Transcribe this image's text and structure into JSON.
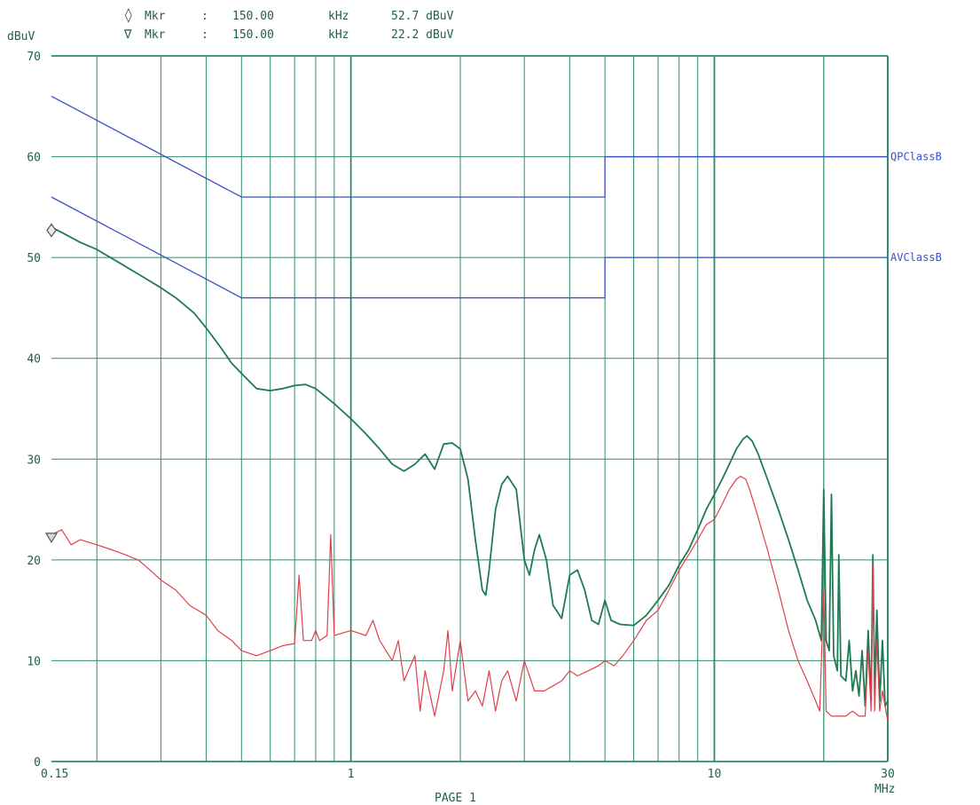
{
  "header": {
    "markers": [
      {
        "symbol": "◊",
        "label": "Mkr",
        "sep": ":",
        "freq": "150.00",
        "freq_unit": "kHz",
        "level": "52.7 dBuV"
      },
      {
        "symbol": "∇",
        "label": "Mkr",
        "sep": ":",
        "freq": "150.00",
        "freq_unit": "kHz",
        "level": "22.2 dBuV"
      }
    ]
  },
  "footer": {
    "page_label": "PAGE 1"
  },
  "colors": {
    "grid": "#2e8b68",
    "limit": "#3a4fc4",
    "trace_green": "#1f7a55",
    "trace_red": "#e0404a",
    "text": "#1f5f4a",
    "limit_label": "#3a4fc4"
  },
  "chart_data": {
    "type": "line",
    "xscale": "log",
    "xlim": [
      0.15,
      30
    ],
    "ylim": [
      0,
      70
    ],
    "ylabel": "dBuV",
    "xunit": "MHz",
    "y_ticks": [
      0,
      10,
      20,
      30,
      40,
      50,
      60,
      70
    ],
    "x_tick_labels": [
      {
        "value": 0.15,
        "label": "0.15"
      },
      {
        "value": 1,
        "label": "1"
      },
      {
        "value": 10,
        "label": "10"
      },
      {
        "value": 30,
        "label": "30"
      }
    ],
    "limit_lines": [
      {
        "name": "QPClassB",
        "points": [
          [
            0.15,
            66
          ],
          [
            0.5,
            56
          ],
          [
            5,
            56
          ],
          [
            5,
            60
          ],
          [
            30,
            60
          ]
        ]
      },
      {
        "name": "AVClassB",
        "points": [
          [
            0.15,
            56
          ],
          [
            0.5,
            46
          ],
          [
            5,
            46
          ],
          [
            5,
            50
          ],
          [
            30,
            50
          ]
        ]
      }
    ],
    "series": [
      {
        "color": "green",
        "points": [
          [
            0.15,
            53
          ],
          [
            0.16,
            52.5
          ],
          [
            0.18,
            51.5
          ],
          [
            0.2,
            50.8
          ],
          [
            0.23,
            49.5
          ],
          [
            0.27,
            48
          ],
          [
            0.3,
            47
          ],
          [
            0.33,
            46
          ],
          [
            0.37,
            44.5
          ],
          [
            0.4,
            43
          ],
          [
            0.44,
            41
          ],
          [
            0.47,
            39.5
          ],
          [
            0.5,
            38.5
          ],
          [
            0.55,
            37
          ],
          [
            0.6,
            36.8
          ],
          [
            0.65,
            37
          ],
          [
            0.7,
            37.3
          ],
          [
            0.75,
            37.4
          ],
          [
            0.8,
            37
          ],
          [
            0.9,
            35.5
          ],
          [
            1.0,
            34
          ],
          [
            1.1,
            32.5
          ],
          [
            1.2,
            31
          ],
          [
            1.3,
            29.5
          ],
          [
            1.4,
            28.8
          ],
          [
            1.5,
            29.5
          ],
          [
            1.6,
            30.5
          ],
          [
            1.7,
            29
          ],
          [
            1.8,
            31.5
          ],
          [
            1.9,
            31.6
          ],
          [
            2.0,
            31
          ],
          [
            2.1,
            28
          ],
          [
            2.2,
            22
          ],
          [
            2.3,
            17
          ],
          [
            2.35,
            16.5
          ],
          [
            2.4,
            19
          ],
          [
            2.5,
            25
          ],
          [
            2.6,
            27.5
          ],
          [
            2.7,
            28.3
          ],
          [
            2.85,
            27
          ],
          [
            3.0,
            20
          ],
          [
            3.1,
            18.5
          ],
          [
            3.2,
            21
          ],
          [
            3.3,
            22.5
          ],
          [
            3.45,
            20
          ],
          [
            3.6,
            15.5
          ],
          [
            3.8,
            14.2
          ],
          [
            4.0,
            18.5
          ],
          [
            4.2,
            19
          ],
          [
            4.4,
            17
          ],
          [
            4.6,
            14
          ],
          [
            4.8,
            13.6
          ],
          [
            5.0,
            16
          ],
          [
            5.2,
            14
          ],
          [
            5.5,
            13.6
          ],
          [
            6.0,
            13.5
          ],
          [
            6.5,
            14.5
          ],
          [
            7.0,
            16
          ],
          [
            7.5,
            17.5
          ],
          [
            8.0,
            19.5
          ],
          [
            8.5,
            21
          ],
          [
            9.0,
            23
          ],
          [
            9.5,
            25
          ],
          [
            10.0,
            26.5
          ],
          [
            10.5,
            28
          ],
          [
            11.0,
            29.5
          ],
          [
            11.5,
            31
          ],
          [
            12.0,
            32
          ],
          [
            12.3,
            32.3
          ],
          [
            12.7,
            31.8
          ],
          [
            13.2,
            30.5
          ],
          [
            14.0,
            28
          ],
          [
            15.0,
            25
          ],
          [
            16.0,
            22
          ],
          [
            17.0,
            19
          ],
          [
            18.0,
            16
          ],
          [
            19.0,
            14
          ],
          [
            19.7,
            12
          ],
          [
            20.0,
            27
          ],
          [
            20.3,
            12
          ],
          [
            20.7,
            11
          ],
          [
            21.0,
            26.5
          ],
          [
            21.3,
            10.5
          ],
          [
            21.8,
            9
          ],
          [
            22.0,
            20.5
          ],
          [
            22.3,
            8.5
          ],
          [
            23.0,
            8
          ],
          [
            23.5,
            12
          ],
          [
            24.0,
            7
          ],
          [
            24.5,
            9
          ],
          [
            25.0,
            6.5
          ],
          [
            25.5,
            11
          ],
          [
            26.0,
            5.5
          ],
          [
            26.5,
            13
          ],
          [
            27.0,
            6
          ],
          [
            27.3,
            20.5
          ],
          [
            27.6,
            7
          ],
          [
            28.0,
            15
          ],
          [
            28.5,
            6
          ],
          [
            29.0,
            12
          ],
          [
            29.5,
            5.5
          ],
          [
            30.0,
            6
          ]
        ]
      },
      {
        "color": "red",
        "points": [
          [
            0.15,
            22.5
          ],
          [
            0.16,
            23
          ],
          [
            0.17,
            21.5
          ],
          [
            0.18,
            22
          ],
          [
            0.2,
            21.5
          ],
          [
            0.22,
            21
          ],
          [
            0.24,
            20.5
          ],
          [
            0.26,
            20
          ],
          [
            0.28,
            19
          ],
          [
            0.3,
            18
          ],
          [
            0.33,
            17
          ],
          [
            0.36,
            15.5
          ],
          [
            0.4,
            14.5
          ],
          [
            0.43,
            13
          ],
          [
            0.47,
            12
          ],
          [
            0.5,
            11
          ],
          [
            0.55,
            10.5
          ],
          [
            0.6,
            11
          ],
          [
            0.65,
            11.5
          ],
          [
            0.7,
            11.7
          ],
          [
            0.72,
            18.5
          ],
          [
            0.74,
            12
          ],
          [
            0.78,
            12
          ],
          [
            0.8,
            13
          ],
          [
            0.82,
            12
          ],
          [
            0.86,
            12.5
          ],
          [
            0.88,
            22.5
          ],
          [
            0.9,
            12.5
          ],
          [
            1.0,
            13
          ],
          [
            1.1,
            12.5
          ],
          [
            1.15,
            14
          ],
          [
            1.2,
            12
          ],
          [
            1.3,
            10
          ],
          [
            1.35,
            12
          ],
          [
            1.4,
            8
          ],
          [
            1.5,
            10.5
          ],
          [
            1.55,
            5
          ],
          [
            1.6,
            9
          ],
          [
            1.7,
            4.5
          ],
          [
            1.8,
            9
          ],
          [
            1.85,
            13
          ],
          [
            1.9,
            7
          ],
          [
            2.0,
            12
          ],
          [
            2.1,
            6
          ],
          [
            2.2,
            7
          ],
          [
            2.3,
            5.5
          ],
          [
            2.4,
            9
          ],
          [
            2.5,
            5
          ],
          [
            2.6,
            8
          ],
          [
            2.7,
            9
          ],
          [
            2.85,
            6
          ],
          [
            3.0,
            10
          ],
          [
            3.2,
            7
          ],
          [
            3.4,
            7
          ],
          [
            3.6,
            7.5
          ],
          [
            3.8,
            8
          ],
          [
            4.0,
            9
          ],
          [
            4.2,
            8.5
          ],
          [
            4.5,
            9
          ],
          [
            4.8,
            9.5
          ],
          [
            5.0,
            10
          ],
          [
            5.3,
            9.5
          ],
          [
            5.6,
            10.5
          ],
          [
            6.0,
            12
          ],
          [
            6.5,
            14
          ],
          [
            7.0,
            15
          ],
          [
            7.5,
            17
          ],
          [
            8.0,
            19
          ],
          [
            8.5,
            20.5
          ],
          [
            9.0,
            22
          ],
          [
            9.5,
            23.5
          ],
          [
            10.0,
            24
          ],
          [
            10.5,
            25.5
          ],
          [
            11.0,
            27
          ],
          [
            11.5,
            28
          ],
          [
            11.8,
            28.3
          ],
          [
            12.2,
            28
          ],
          [
            12.5,
            27
          ],
          [
            13.0,
            25
          ],
          [
            14.0,
            21
          ],
          [
            15.0,
            17
          ],
          [
            16.0,
            13
          ],
          [
            17.0,
            10
          ],
          [
            18.0,
            8
          ],
          [
            19.0,
            6
          ],
          [
            19.5,
            5
          ],
          [
            20.0,
            17
          ],
          [
            20.3,
            5
          ],
          [
            21.0,
            4.5
          ],
          [
            22.0,
            4.5
          ],
          [
            23.0,
            4.5
          ],
          [
            24.0,
            5
          ],
          [
            25.0,
            4.5
          ],
          [
            26.0,
            4.5
          ],
          [
            26.5,
            11
          ],
          [
            27.0,
            5
          ],
          [
            27.3,
            19.5
          ],
          [
            27.6,
            5
          ],
          [
            28.0,
            12
          ],
          [
            28.5,
            5
          ],
          [
            29.0,
            7
          ],
          [
            30.0,
            4
          ]
        ]
      }
    ],
    "markers": [
      {
        "shape": "diamond",
        "x": 0.15,
        "y": 52.7
      },
      {
        "shape": "triangle-down",
        "x": 0.15,
        "y": 22.2
      }
    ]
  }
}
